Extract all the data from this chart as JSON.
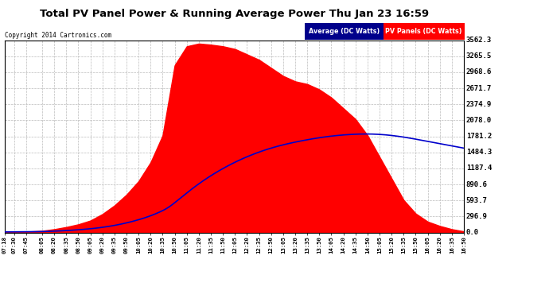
{
  "title": "Total PV Panel Power & Running Average Power Thu Jan 23 16:59",
  "copyright": "Copyright 2014 Cartronics.com",
  "legend_avg": "Average (DC Watts)",
  "legend_pv": "PV Panels (DC Watts)",
  "bg_color": "#ffffff",
  "plot_bg_color": "#ffffff",
  "grid_color": "#bbbbbb",
  "pv_color": "#ff0000",
  "avg_color": "#0000cc",
  "yticks": [
    0.0,
    296.9,
    593.7,
    890.6,
    1187.4,
    1484.3,
    1781.2,
    2078.0,
    2374.9,
    2671.7,
    2968.6,
    3265.5,
    3562.3
  ],
  "xtick_labels": [
    "07:18",
    "07:30",
    "07:45",
    "08:05",
    "08:20",
    "08:35",
    "08:50",
    "09:05",
    "09:20",
    "09:35",
    "09:50",
    "10:05",
    "10:20",
    "10:35",
    "10:50",
    "11:05",
    "11:20",
    "11:35",
    "11:50",
    "12:05",
    "12:20",
    "12:35",
    "12:50",
    "13:05",
    "13:20",
    "13:35",
    "13:50",
    "14:05",
    "14:20",
    "14:35",
    "14:50",
    "15:05",
    "15:20",
    "15:35",
    "15:50",
    "16:05",
    "16:20",
    "16:35",
    "16:50"
  ],
  "ymax": 3562.3,
  "ymin": 0.0,
  "pv_keypoints_t": [
    438,
    450,
    465,
    485,
    500,
    515,
    530,
    545,
    560,
    575,
    590,
    605,
    620,
    635,
    650,
    665,
    680,
    695,
    710,
    725,
    740,
    755,
    770,
    785,
    800,
    815,
    830,
    845,
    860,
    875,
    890,
    905,
    920,
    935,
    950,
    965,
    980,
    995,
    1010
  ],
  "pv_keypoints_v": [
    10,
    12,
    15,
    30,
    60,
    100,
    150,
    220,
    340,
    500,
    700,
    950,
    1300,
    1800,
    3100,
    3450,
    3500,
    3480,
    3450,
    3400,
    3300,
    3200,
    3050,
    2900,
    2800,
    2750,
    2650,
    2500,
    2300,
    2100,
    1800,
    1400,
    1000,
    600,
    350,
    200,
    120,
    60,
    20
  ]
}
